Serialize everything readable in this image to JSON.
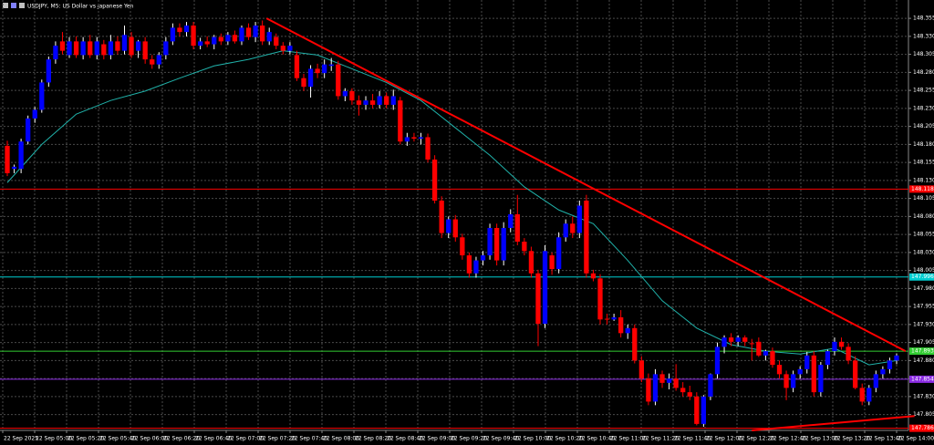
{
  "chart_data": {
    "type": "candlestick",
    "title": "USDJPY, M5:  US Dollar vs Japanese Yen",
    "bull_color": "#0000ff",
    "bear_color": "#ff0000",
    "grid": true,
    "ylim": [
      147.783,
      148.364
    ],
    "yticks": [
      148.355,
      {
        "value": 148.33,
        "label": "148.330"
      },
      148.305,
      {
        "value": 148.28,
        "label": "148.280"
      },
      148.255,
      {
        "value": 148.23,
        "label": "148.230"
      },
      148.205,
      {
        "value": 148.18,
        "label": "148.180"
      },
      148.155,
      {
        "value": 148.13,
        "label": "148.130"
      },
      148.105,
      {
        "value": 148.08,
        "label": "148.080"
      },
      148.055,
      {
        "value": 148.03,
        "label": "148.030"
      },
      148.005,
      {
        "value": 147.98,
        "label": "147.980"
      },
      147.955,
      {
        "value": 147.93,
        "label": "147.930"
      },
      147.905,
      {
        "value": 147.88,
        "label": "147.880"
      },
      147.855,
      {
        "value": 147.83,
        "label": "147.830"
      },
      147.805
    ],
    "xlabels": [
      "22 Sep 2025",
      "22 Sep 05:00",
      "22 Sep 05:20",
      "22 Sep 05:40",
      "22 Sep 06:00",
      "22 Sep 06:20",
      "22 Sep 06:40",
      "22 Sep 07:00",
      "22 Sep 07:20",
      "22 Sep 07:40",
      "22 Sep 08:00",
      "22 Sep 08:20",
      "22 Sep 08:40",
      "22 Sep 09:00",
      "22 Sep 09:20",
      "22 Sep 09:40",
      "22 Sep 10:00",
      "22 Sep 10:20",
      "22 Sep 10:40",
      "22 Sep 11:00",
      "22 Sep 11:20",
      "22 Sep 11:40",
      "22 Sep 12:00",
      "22 Sep 12:20",
      "22 Sep 12:40",
      "22 Sep 13:00",
      "22 Sep 13:20",
      "22 Sep 13:40",
      "22 Sep 14:00"
    ],
    "candles": [
      [
        148.178,
        148.185,
        148.136,
        148.14
      ],
      [
        148.146,
        148.152,
        148.14,
        148.149
      ],
      [
        148.146,
        148.188,
        148.14,
        148.184
      ],
      [
        148.184,
        148.22,
        148.18,
        148.216
      ],
      [
        148.216,
        148.232,
        148.21,
        148.228
      ],
      [
        148.228,
        148.27,
        148.224,
        148.266
      ],
      [
        148.266,
        148.302,
        148.26,
        148.298
      ],
      [
        148.298,
        148.323,
        148.292,
        148.317
      ],
      [
        148.323,
        148.336,
        148.305,
        148.31
      ],
      [
        148.304,
        148.329,
        148.3,
        148.323
      ],
      [
        148.323,
        148.33,
        148.3,
        148.304
      ],
      [
        148.304,
        148.329,
        148.298,
        148.323
      ],
      [
        148.323,
        148.332,
        148.3,
        148.304
      ],
      [
        148.304,
        148.329,
        148.298,
        148.323
      ],
      [
        148.319,
        148.325,
        148.298,
        148.304
      ],
      [
        148.304,
        148.332,
        148.298,
        148.323
      ],
      [
        148.323,
        148.33,
        148.305,
        148.31
      ],
      [
        148.31,
        148.345,
        148.305,
        148.332
      ],
      [
        148.329,
        148.336,
        148.3,
        148.304
      ],
      [
        148.31,
        148.325,
        148.3,
        148.323
      ],
      [
        148.323,
        148.329,
        148.292,
        148.298
      ],
      [
        148.298,
        148.304,
        148.285,
        148.291
      ],
      [
        148.291,
        148.308,
        148.285,
        148.304
      ],
      [
        148.304,
        148.329,
        148.298,
        148.323
      ],
      [
        148.323,
        148.348,
        148.318,
        148.342
      ],
      [
        148.342,
        148.348,
        148.33,
        148.336
      ],
      [
        148.336,
        148.35,
        148.33,
        148.345
      ],
      [
        148.345,
        148.35,
        148.312,
        148.317
      ],
      [
        148.317,
        148.328,
        148.312,
        148.323
      ],
      [
        148.323,
        148.33,
        148.315,
        148.319
      ],
      [
        148.319,
        148.332,
        148.312,
        148.329
      ],
      [
        148.329,
        148.334,
        148.318,
        148.323
      ],
      [
        148.323,
        148.336,
        148.318,
        148.332
      ],
      [
        148.332,
        148.338,
        148.32,
        148.323
      ],
      [
        148.323,
        148.345,
        148.318,
        148.342
      ],
      [
        148.342,
        148.348,
        148.325,
        148.329
      ],
      [
        148.329,
        148.35,
        148.322,
        148.345
      ],
      [
        148.345,
        148.352,
        148.318,
        148.323
      ],
      [
        148.323,
        148.342,
        148.318,
        148.336
      ],
      [
        148.329,
        148.334,
        148.312,
        148.317
      ],
      [
        148.317,
        148.322,
        148.305,
        148.31
      ],
      [
        148.31,
        148.322,
        148.305,
        148.317
      ],
      [
        148.304,
        148.31,
        148.268,
        148.272
      ],
      [
        148.272,
        148.278,
        148.254,
        148.26
      ],
      [
        148.26,
        148.29,
        148.245,
        148.285
      ],
      [
        148.285,
        148.292,
        148.272,
        148.279
      ],
      [
        148.279,
        148.298,
        148.272,
        148.291
      ],
      [
        148.289,
        148.3,
        148.282,
        148.291
      ],
      [
        148.291,
        148.296,
        148.242,
        148.247
      ],
      [
        148.247,
        148.258,
        148.24,
        148.254
      ],
      [
        148.254,
        148.258,
        148.235,
        148.241
      ],
      [
        148.241,
        148.248,
        148.22,
        148.235
      ],
      [
        148.235,
        148.247,
        148.228,
        148.241
      ],
      [
        148.241,
        148.25,
        148.23,
        148.235
      ],
      [
        148.235,
        148.254,
        148.23,
        148.247
      ],
      [
        148.247,
        148.252,
        148.23,
        148.235
      ],
      [
        148.235,
        148.256,
        148.228,
        148.247
      ],
      [
        148.241,
        148.246,
        148.18,
        148.184
      ],
      [
        148.184,
        148.196,
        148.178,
        148.19
      ],
      [
        148.19,
        148.196,
        148.184,
        148.188
      ],
      [
        148.188,
        148.196,
        148.18,
        148.19
      ],
      [
        148.19,
        148.195,
        148.155,
        148.159
      ],
      [
        148.159,
        148.165,
        148.098,
        148.102
      ],
      [
        148.102,
        148.108,
        148.05,
        148.057
      ],
      [
        148.057,
        148.08,
        148.05,
        148.076
      ],
      [
        148.076,
        148.082,
        148.045,
        148.051
      ],
      [
        148.051,
        148.056,
        148.02,
        148.026
      ],
      [
        148.026,
        148.03,
        147.995,
        148.001
      ],
      [
        148.001,
        148.024,
        147.995,
        148.019
      ],
      [
        148.019,
        148.032,
        148.012,
        148.026
      ],
      [
        148.026,
        148.07,
        148.02,
        148.064
      ],
      [
        148.064,
        148.07,
        148.012,
        148.019
      ],
      [
        148.019,
        148.072,
        148.012,
        148.064
      ],
      [
        148.064,
        148.09,
        148.058,
        148.083
      ],
      [
        148.083,
        148.11,
        148.04,
        148.045
      ],
      [
        148.045,
        148.05,
        148.026,
        148.032
      ],
      [
        148.032,
        148.038,
        147.995,
        148.001
      ],
      [
        148.001,
        148.006,
        147.9,
        147.931
      ],
      [
        147.931,
        148.04,
        147.925,
        148.032
      ],
      [
        148.026,
        148.03,
        147.999,
        148.007
      ],
      [
        148.007,
        148.058,
        148.001,
        148.051
      ],
      [
        148.051,
        148.076,
        148.045,
        148.07
      ],
      [
        148.07,
        148.08,
        148.05,
        148.057
      ],
      [
        148.057,
        148.102,
        148.05,
        148.095
      ],
      [
        148.102,
        148.11,
        147.995,
        148.001
      ],
      [
        148.001,
        148.006,
        147.99,
        147.994
      ],
      [
        147.994,
        148.0,
        147.93,
        147.937
      ],
      [
        147.938,
        147.945,
        147.93,
        147.937
      ],
      [
        147.937,
        147.945,
        147.935,
        147.94
      ],
      [
        147.94,
        147.95,
        147.912,
        147.918
      ],
      [
        147.918,
        147.93,
        147.91,
        147.925
      ],
      [
        147.925,
        147.93,
        147.876,
        147.88
      ],
      [
        147.88,
        147.886,
        147.85,
        147.855
      ],
      [
        147.855,
        147.862,
        147.818,
        147.823
      ],
      [
        147.823,
        147.868,
        147.818,
        147.861
      ],
      [
        147.861,
        147.866,
        147.842,
        147.849
      ],
      [
        147.849,
        147.862,
        147.84,
        147.855
      ],
      [
        147.855,
        147.875,
        147.838,
        147.842
      ],
      [
        147.842,
        147.85,
        147.83,
        147.836
      ],
      [
        147.836,
        147.845,
        147.825,
        147.83
      ],
      [
        147.83,
        147.836,
        147.79,
        147.792
      ],
      [
        147.792,
        147.832,
        147.788,
        147.83
      ],
      [
        147.83,
        147.862,
        147.825,
        147.861
      ],
      [
        147.861,
        147.905,
        147.855,
        147.899
      ],
      [
        147.899,
        147.915,
        147.89,
        147.912
      ],
      [
        147.912,
        147.918,
        147.9,
        147.906
      ],
      [
        147.906,
        147.915,
        147.9,
        147.912
      ],
      [
        147.912,
        147.915,
        147.9,
        147.906
      ],
      [
        147.904,
        147.91,
        147.88,
        147.903
      ],
      [
        147.906,
        147.912,
        147.885,
        147.887
      ],
      [
        147.887,
        147.895,
        147.88,
        147.893
      ],
      [
        147.893,
        147.898,
        147.87,
        147.874
      ],
      [
        147.874,
        147.88,
        147.855,
        147.861
      ],
      [
        147.861,
        147.866,
        147.825,
        147.842
      ],
      [
        147.842,
        147.866,
        147.836,
        147.861
      ],
      [
        147.861,
        147.872,
        147.855,
        147.868
      ],
      [
        147.868,
        147.892,
        147.862,
        147.887
      ],
      [
        147.887,
        147.893,
        147.83,
        147.836
      ],
      [
        147.836,
        147.878,
        147.83,
        147.874
      ],
      [
        147.874,
        147.895,
        147.868,
        147.893
      ],
      [
        147.893,
        147.912,
        147.887,
        147.906
      ],
      [
        147.906,
        147.912,
        147.895,
        147.899
      ],
      [
        147.899,
        147.904,
        147.875,
        147.88
      ],
      [
        147.88,
        147.886,
        147.84,
        147.842
      ],
      [
        147.842,
        147.848,
        147.818,
        147.823
      ],
      [
        147.823,
        147.846,
        147.818,
        147.842
      ],
      [
        147.842,
        147.866,
        147.836,
        147.861
      ],
      [
        147.861,
        147.872,
        147.855,
        147.868
      ],
      [
        147.868,
        147.884,
        147.862,
        147.88
      ],
      [
        147.88,
        147.89,
        147.875,
        147.887
      ]
    ],
    "moving_average": {
      "color": "#20b2aa",
      "x": [
        0,
        5,
        10,
        15,
        20,
        25,
        30,
        35,
        40,
        45,
        50,
        55,
        60,
        65,
        70,
        75,
        80,
        85,
        90,
        95,
        100,
        105,
        110,
        115,
        120,
        125,
        129
      ],
      "values": [
        148.127,
        148.18,
        148.222,
        148.241,
        148.254,
        148.272,
        148.289,
        148.298,
        148.31,
        148.304,
        148.285,
        148.266,
        148.241,
        148.203,
        148.165,
        148.121,
        148.089,
        148.07,
        148.019,
        147.963,
        147.925,
        147.902,
        147.893,
        147.889,
        147.897,
        147.874,
        147.88
      ]
    },
    "levels": [
      {
        "value": 148.118,
        "color": "#ff0000"
      },
      {
        "value": 147.996,
        "color": "#00ced1"
      },
      {
        "value": 147.893,
        "color": "#32cd32"
      },
      {
        "value": 147.854,
        "color": "#8a2be2"
      },
      {
        "value": 147.786,
        "color": "#ff0000"
      }
    ],
    "trendlines": [
      {
        "color": "#ff0000",
        "x": [
          37.6,
          130.3
        ],
        "values": [
          148.355,
          147.893
        ]
      },
      {
        "color": "#ff0000",
        "x": [
          108,
          131.6
        ],
        "values": [
          147.783,
          147.803
        ]
      }
    ]
  }
}
